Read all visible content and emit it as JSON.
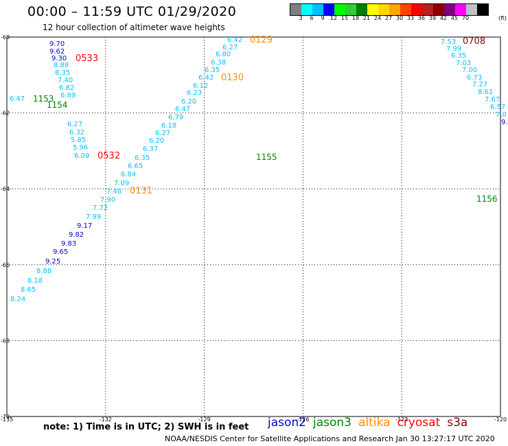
{
  "header": {
    "title": "00:00 – 11:59 UTC 01/29/2020",
    "subtitle": "12 hour collection of altimeter wave heights"
  },
  "colorbar": {
    "colors": [
      "#808080",
      "#00ffff",
      "#00bfff",
      "#0000ff",
      "#00ff00",
      "#32cd32",
      "#008000",
      "#ffff00",
      "#ffd700",
      "#ffa500",
      "#ff4500",
      "#ff0000",
      "#b22222",
      "#8b0000",
      "#800080",
      "#ff00ff",
      "#c0c0c0",
      "#000000"
    ],
    "tick_labels": [
      "3",
      "6",
      "9",
      "12",
      "15",
      "18",
      "21",
      "24",
      "27",
      "30",
      "33",
      "36",
      "39",
      "42",
      "45",
      "70"
    ],
    "unit": "(ft)"
  },
  "map": {
    "lon_range": [
      -135,
      -120
    ],
    "lat_range": [
      -70,
      -60
    ],
    "lon_ticks": [
      "-135",
      "-132",
      "-129",
      "-126",
      "-123",
      "-120"
    ],
    "lat_ticks": [
      "-60",
      "-62",
      "-64",
      "-66",
      "-68",
      "-70"
    ],
    "grid": "dotted"
  },
  "tracks": {
    "t0129": {
      "time_label": "0129",
      "time_color": "#ff8c00",
      "values": [
        "6.42",
        "6.27",
        "6.80",
        "6.38",
        "6.35",
        "6.42",
        "6.12",
        "6.23",
        "6.20",
        "6.47",
        "6.79",
        "6.18",
        "6.27",
        "6.20",
        "6.37",
        "6.35",
        "6.84",
        "6.65",
        "7.09",
        "7.48",
        "7.90",
        "7.72",
        "7.99",
        "9.17",
        "9.82",
        "9.83",
        "9.65",
        "9.25",
        "8.88",
        "8.18",
        "8.65",
        "8.24"
      ],
      "colors": [
        "#00bfff",
        "#00bfff",
        "#00bfff",
        "#00bfff",
        "#00bfff",
        "#00bfff",
        "#00bfff",
        "#00bfff",
        "#00bfff",
        "#00bfff",
        "#00bfff",
        "#00bfff",
        "#00bfff",
        "#00bfff",
        "#00bfff",
        "#00bfff",
        "#00bfff",
        "#00bfff",
        "#00bfff",
        "#00bfff",
        "#00bfff",
        "#00bfff",
        "#00bfff",
        "#0000cd",
        "#0000cd",
        "#0000cd",
        "#0000cd",
        "#0000cd",
        "#00bfff",
        "#00bfff",
        "#00bfff",
        "#00bfff"
      ]
    },
    "t0130": {
      "time_label": "0130",
      "time_color": "#ff8c00"
    },
    "t0131": {
      "time_label": "0131",
      "time_color": "#ff8c00"
    },
    "t0532": {
      "time_label": "0532",
      "time_color": "#ff0000",
      "values": [
        "6.27",
        "6.32",
        "5.85",
        "5.96",
        "6.09"
      ],
      "colors": [
        "#00bfff",
        "#00bfff",
        "#00bfff",
        "#00bfff",
        "#00bfff"
      ]
    },
    "t0533": {
      "time_label": "0533",
      "time_color": "#ff0000",
      "values": [
        "9.70",
        "9.62",
        "9.30",
        "8.88",
        "8.35",
        "7.40",
        "6.82",
        "6.89"
      ],
      "colors": [
        "#0000cd",
        "#0000cd",
        "#0000cd",
        "#00bfff",
        "#00bfff",
        "#00bfff",
        "#00bfff",
        "#00bfff"
      ]
    },
    "t0708": {
      "time_label": "0708",
      "time_color": "#8b0000",
      "values": [
        "7.53",
        "7.99",
        "6.35",
        "7.03",
        "7.00",
        "6.73",
        "7.27",
        "8.61",
        "7.67",
        "6.57",
        "7.0",
        "9."
      ],
      "colors": [
        "#00bfff",
        "#00bfff",
        "#00bfff",
        "#00bfff",
        "#00bfff",
        "#00bfff",
        "#00bfff",
        "#00bfff",
        "#00bfff",
        "#00bfff",
        "#00bfff",
        "#0000cd"
      ]
    },
    "t1153": {
      "time_label": "1153",
      "time_color": "#008000"
    },
    "t1154": {
      "time_label": "1154",
      "time_color": "#008000"
    },
    "t1155": {
      "time_label": "1155",
      "time_color": "#008000"
    },
    "t1156": {
      "time_label": "1156",
      "time_color": "#008000"
    },
    "t1153_start_value": "6.47"
  },
  "note": "note:  1) Time is in UTC;  2) SWH is in feet",
  "satellites": [
    {
      "name": "jason2",
      "color": "#0000cd"
    },
    {
      "name": "jason3",
      "color": "#008000"
    },
    {
      "name": "altika",
      "color": "#ff8c00"
    },
    {
      "name": "cryosat",
      "color": "#ff0000"
    },
    {
      "name": "s3a",
      "color": "#8b0000"
    }
  ],
  "footer": "NOAA/NESDIS Center for Satellite Applications and Research    Jan 30 13:27:17 UTC 2020"
}
